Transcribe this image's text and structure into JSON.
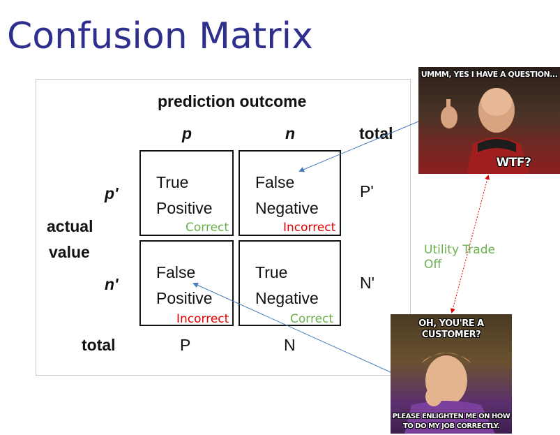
{
  "slide": {
    "title": "Confusion Matrix"
  },
  "matrix": {
    "header": "prediction outcome",
    "col_p": "p",
    "col_n": "n",
    "col_total": "total",
    "row_p": "p'",
    "row_n": "n'",
    "row_total": "total",
    "actual_line1": "actual",
    "actual_line2": "value",
    "total_P_prime": "P'",
    "total_N_prime": "N'",
    "total_P": "P",
    "total_N": "N",
    "cells": {
      "tp": {
        "line1": "True",
        "line2": "Positive"
      },
      "fn": {
        "line1": "False",
        "line2": "Negative"
      },
      "fp": {
        "line1": "False",
        "line2": "Positive"
      },
      "tn": {
        "line1": "True",
        "line2": "Negative"
      }
    }
  },
  "annotations": {
    "tp": "Correct",
    "fn": "Incorrect",
    "fp": "Incorrect",
    "tn": "Correct",
    "tradeoff": "Utility Trade Off"
  },
  "memes": {
    "picard": {
      "top": "UMMM, YES I HAVE A QUESTION...",
      "bottom": "WTF?"
    },
    "wonka": {
      "top_line1": "OH, YOU'RE A",
      "top_line2": "CUSTOMER?",
      "bottom_line1": "PLEASE ENLIGHTEN ME ON HOW",
      "bottom_line2": "TO DO MY JOB CORRECTLY."
    }
  },
  "colors": {
    "title": "#2e2f8c",
    "correct": "#6ab04c",
    "incorrect": "#e00000",
    "arrow_blue": "#4a7ebb",
    "arrow_red": "#e00000"
  }
}
